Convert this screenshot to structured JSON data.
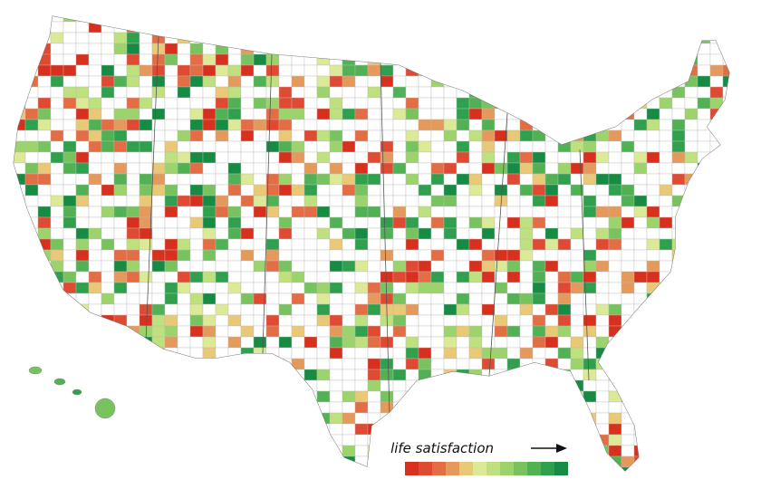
{
  "legend": {
    "title": "life satisfaction",
    "colors": [
      "#d7301f",
      "#de4a32",
      "#e36d45",
      "#e49a5c",
      "#e9c877",
      "#dce996",
      "#bfe07f",
      "#9dd36c",
      "#78c35f",
      "#52b155",
      "#30a04e",
      "#178a43"
    ]
  }
}
